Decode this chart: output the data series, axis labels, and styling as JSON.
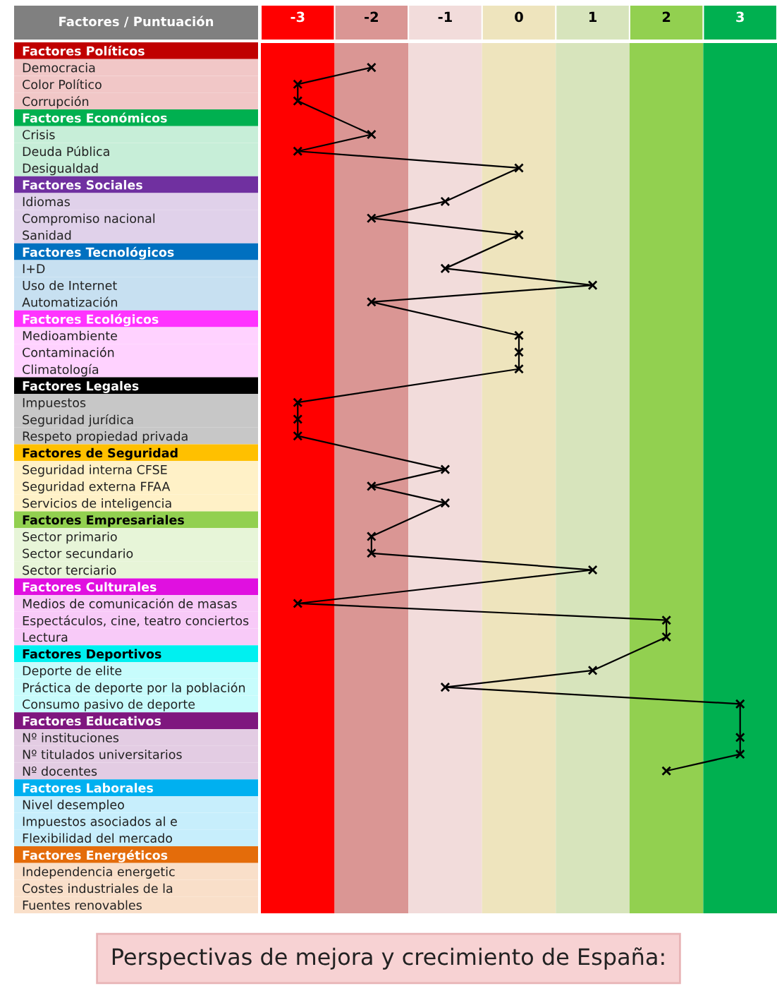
{
  "chart_data": {
    "type": "line",
    "orientation": "horizontal",
    "ylabel": "Factores / Puntuación",
    "categories": [
      "Factores Políticos",
      "Democracia",
      "Color Político",
      "Corrupción",
      "Factores Económicos",
      "Crisis",
      "Deuda Pública",
      "Desigualdad",
      "Factores Sociales",
      "Idiomas",
      "Compromiso nacional",
      "Sanidad",
      "Factores Tecnológicos",
      "I+D",
      "Uso de Internet",
      "Automatización",
      "Factores Ecológicos",
      "Medioambiente",
      "Contaminación",
      "Climatología",
      "Factores Legales",
      "Impuestos",
      "Seguridad jurídica",
      "Respeto propiedad privada",
      "Factores de Seguridad",
      "Seguridad interna CFSE",
      "Seguridad externa FFAA",
      "Servicios de inteligencia",
      "Factores Empresariales",
      "Sector primario",
      "Sector secundario",
      "Sector terciario",
      "Factores Culturales",
      "Medios de comunicación de masas",
      "Espectáculos, cine, teatro conciertos",
      "Lectura",
      "Factores Deportivos",
      "Deporte de elite",
      "Práctica de deporte por la población",
      "Consumo pasivo de deporte",
      "Factores Educativos",
      "Nº instituciones",
      "Nº titulados universitarios",
      "Nº docentes",
      "Factores Laborales",
      "Nivel desempleo",
      "Impuestos asociados al e",
      "Flexibilidad del mercado",
      "Factores Energéticos",
      "Independencia energetic",
      "Costes industriales de la",
      "Fuentes renovables"
    ],
    "colors": [
      "#c00000",
      null,
      null,
      null,
      "#00b050",
      null,
      null,
      null,
      "#7030a0",
      null,
      null,
      null,
      "#0070c0",
      null,
      null,
      null,
      "#ff33ff",
      null,
      null,
      null,
      "#000000",
      null,
      null,
      null,
      "#ffc000",
      null,
      null,
      null,
      "#92d050",
      null,
      null,
      null,
      "#e010e0",
      null,
      null,
      null,
      "#00f0f0",
      null,
      null,
      null,
      "#7f177f",
      null,
      null,
      null,
      "#00b0f0",
      null,
      null,
      null,
      "#e46c0a",
      null,
      null,
      null
    ],
    "series": [
      {
        "color": "#000000",
        "values": [
          null,
          -2,
          -3,
          -3,
          null,
          -2,
          -3,
          0,
          null,
          -1,
          -2,
          0,
          null,
          -1,
          1,
          -2,
          null,
          0,
          0,
          0,
          null,
          -3,
          -3,
          -3,
          null,
          -1,
          -2,
          -1,
          null,
          -2,
          -2,
          1,
          null,
          -3,
          2,
          2,
          null,
          1,
          -1,
          3,
          null,
          3,
          3,
          2,
          null,
          null,
          null,
          null,
          null,
          null,
          null,
          null
        ]
      }
    ],
    "xlim": [
      -3.5,
      3.5
    ],
    "xticks": [
      -3,
      -2,
      -1,
      0,
      1,
      2,
      3
    ],
    "marker": "cross",
    "line_style": "solid",
    "grid": false,
    "bands": [
      {
        "axis": "x",
        "from": -3.5,
        "to": -2.5,
        "color": "#ff0000"
      },
      {
        "axis": "x",
        "from": -2.5,
        "to": -1.5,
        "color": "#da9694"
      },
      {
        "axis": "x",
        "from": -1.5,
        "to": -0.5,
        "color": "#f2dcdb"
      },
      {
        "axis": "x",
        "from": -0.5,
        "to": 0.5,
        "color": "#eee4bd"
      },
      {
        "axis": "x",
        "from": 0.5,
        "to": 1.5,
        "color": "#d7e4bc"
      },
      {
        "axis": "x",
        "from": 1.5,
        "to": 2.5,
        "color": "#92d050"
      },
      {
        "axis": "x",
        "from": 2.5,
        "to": 3.5,
        "color": "#00b050"
      }
    ],
    "annotations": [
      "Perspectivas de mejora y crecimiento de España:"
    ]
  }
}
